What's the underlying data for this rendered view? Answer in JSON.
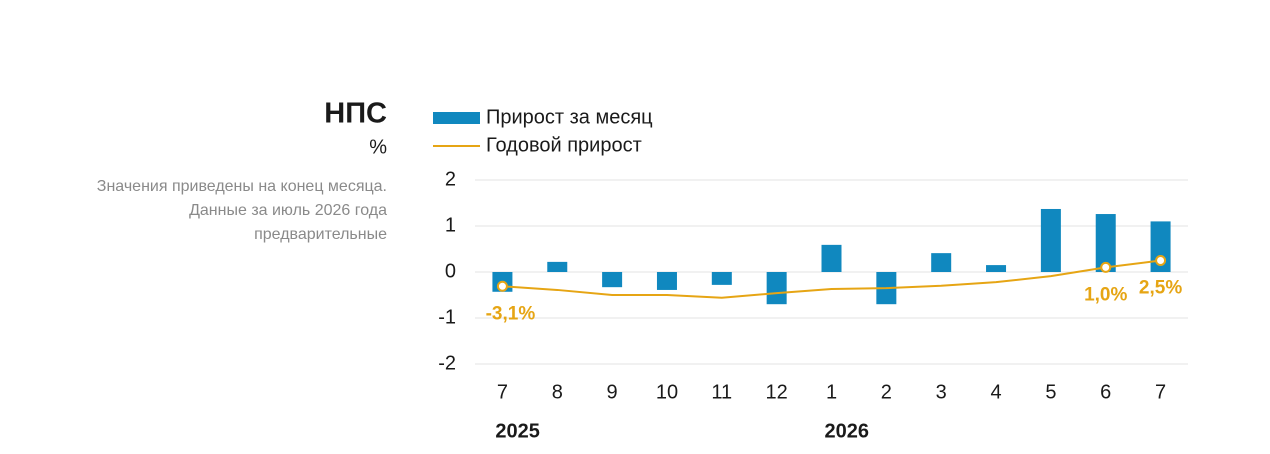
{
  "chart_data": {
    "type": "bar+line",
    "title": "НПС",
    "subtitle": "%",
    "note": [
      "Значения приведены на конец месяца.",
      "Данные за июль 2026 года",
      "предварительные"
    ],
    "categories": [
      "7",
      "8",
      "9",
      "10",
      "11",
      "12",
      "1",
      "2",
      "3",
      "4",
      "5",
      "6",
      "7"
    ],
    "years": [
      "2025",
      null,
      null,
      null,
      null,
      null,
      "2026",
      null,
      null,
      null,
      null,
      null,
      null
    ],
    "series": [
      {
        "name": "Прирост за месяц",
        "type": "bar",
        "color": "#1088bf",
        "values": [
          -0.43,
          0.22,
          -0.33,
          -0.39,
          -0.28,
          -0.7,
          0.59,
          -0.7,
          0.41,
          0.15,
          1.37,
          1.26,
          1.1
        ]
      },
      {
        "name": "Годовой прирост",
        "type": "line",
        "axis": "y2",
        "color": "#e6a514",
        "values": [
          -3.1,
          -3.9,
          -5.0,
          -5.0,
          -5.6,
          -4.6,
          -3.7,
          -3.5,
          -3.0,
          -2.2,
          -0.9,
          1.0,
          2.5
        ],
        "value_labels": [
          "-3,1%",
          null,
          null,
          null,
          null,
          null,
          null,
          null,
          null,
          null,
          null,
          "1,0%",
          "2,5%"
        ]
      }
    ],
    "ylim": [
      -2,
      2
    ],
    "yticks": [
      -2,
      -1,
      0,
      1,
      2
    ],
    "y2lim": [
      -20,
      20
    ],
    "grid": true
  }
}
